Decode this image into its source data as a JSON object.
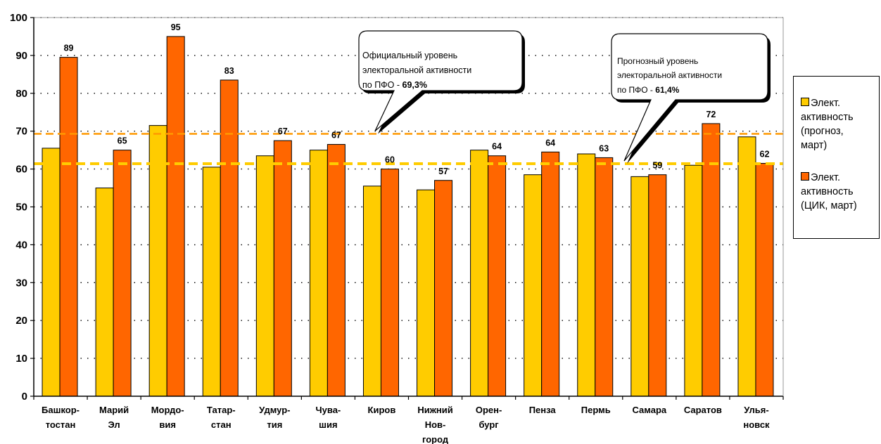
{
  "chart_data": {
    "type": "bar",
    "categories": [
      "Башкор-\nтостан",
      "Марий\nЭл",
      "Мордо-\nвия",
      "Татар-\nстан",
      "Удмур-\nтия",
      "Чува-\nшия",
      "Киров",
      "Нижний\nНов-\nгород",
      "Орен-\nбург",
      "Пенза",
      "Пермь",
      "Самара",
      "Саратов",
      "Улья-\nновск"
    ],
    "series": [
      {
        "name": "Элект. активность (прогноз, март)",
        "color": "#FFCC00",
        "values": [
          65.5,
          55,
          71.5,
          60.5,
          63.5,
          65,
          55.5,
          54.5,
          65,
          58.5,
          64,
          58,
          61,
          68.5
        ]
      },
      {
        "name": "Элект. активность (ЦИК, март)",
        "color": "#FF6600",
        "values": [
          89.5,
          65,
          95,
          83.5,
          67.5,
          66.5,
          60,
          57,
          63.5,
          64.5,
          63,
          58.5,
          72,
          61.5
        ],
        "data_labels": [
          "89",
          "65",
          "95",
          "83",
          "67",
          "67",
          "60",
          "57",
          "64",
          "64",
          "63",
          "59",
          "72",
          "62"
        ]
      }
    ],
    "reference_lines": [
      {
        "value": 69.3,
        "color": "#FF9900",
        "style": "dashed"
      },
      {
        "value": 61.4,
        "color": "#FFCC00",
        "style": "dashed"
      }
    ],
    "ylim": [
      0,
      100
    ],
    "yticks": [
      0,
      10,
      20,
      30,
      40,
      50,
      60,
      70,
      80,
      90,
      100
    ],
    "xlabel": "",
    "ylabel": "",
    "title": "",
    "grid": "horizontal dotted",
    "legend_position": "right"
  },
  "callouts": [
    {
      "text": "Официальный уровень\nэлекторальной активности\nпо ПФО - ",
      "value": "69,3%"
    },
    {
      "text": "Прогнозный уровень\nэлекторальной активности\nпо ПФО - ",
      "value": "61,4%"
    }
  ],
  "legend": {
    "items": [
      {
        "label": "Элект.\nактивность\n(прогноз,\nмарт)",
        "color": "#FFCC00"
      },
      {
        "label": "Элект.\nактивность\n(ЦИК, март)",
        "color": "#FF6600"
      }
    ]
  }
}
